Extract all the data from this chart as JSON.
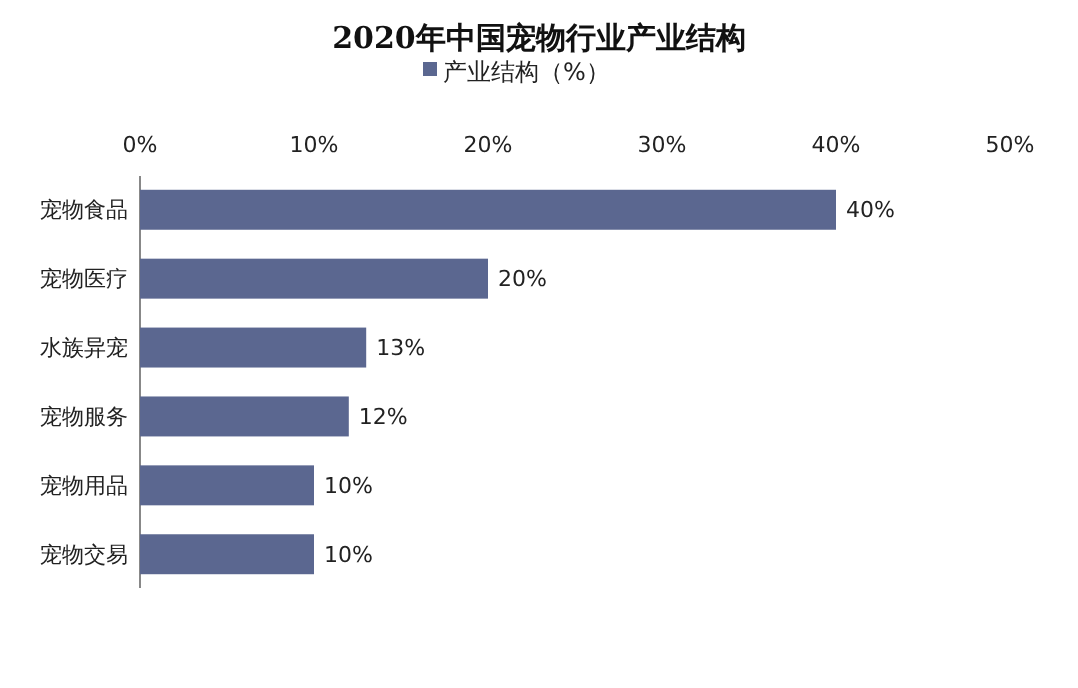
{
  "chart_data": {
    "type": "bar",
    "orientation": "horizontal",
    "title": "2020年中国宠物行业产业结构",
    "categories": [
      "宠物食品",
      "宠物医疗",
      "水族异宠",
      "宠物服务",
      "宠物用品",
      "宠物交易"
    ],
    "series": [
      {
        "name": "产业结构（%）",
        "color": "#5b6790",
        "values": [
          40,
          20,
          13,
          12,
          10,
          10
        ],
        "value_labels": [
          "40%",
          "20%",
          "13%",
          "12%",
          "10%",
          "10%"
        ]
      }
    ],
    "xlim": [
      0,
      50
    ],
    "xticks": [
      {
        "value": 0,
        "label": "0%"
      },
      {
        "value": 10,
        "label": "10%"
      },
      {
        "value": 20,
        "label": "20%"
      },
      {
        "value": 30,
        "label": "30%"
      },
      {
        "value": 40,
        "label": "40%"
      },
      {
        "value": 50,
        "label": "50%"
      }
    ],
    "legend": "top",
    "grid": false
  }
}
